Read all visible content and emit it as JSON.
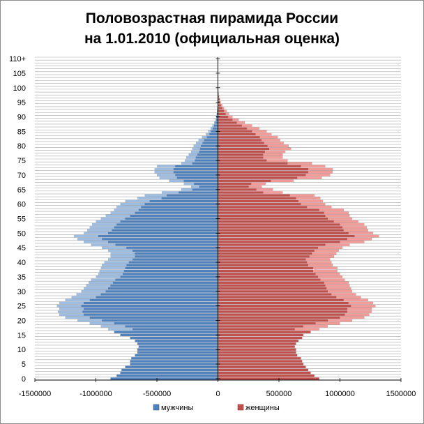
{
  "chart_data": {
    "type": "bar",
    "orientation": "horizontal",
    "title_lines": [
      "Половозрастная пирамида России",
      "на 1.01.2010 (официальная оценка)"
    ],
    "xlim": [
      -1500000,
      1500000
    ],
    "x_ticks": [
      -1500000,
      -1000000,
      -500000,
      0,
      500000,
      1000000,
      1500000
    ],
    "x_tick_labels": [
      "-1500000",
      "-1000000",
      "-500000",
      "0",
      "500000",
      "1000000",
      "1500000"
    ],
    "y_tick_labels": [
      "0",
      "5",
      "10",
      "15",
      "20",
      "25",
      "30",
      "35",
      "40",
      "45",
      "50",
      "55",
      "60",
      "65",
      "70",
      "75",
      "80",
      "85",
      "90",
      "95",
      "100",
      "105",
      "110+"
    ],
    "ages": [
      0,
      1,
      2,
      3,
      4,
      5,
      6,
      7,
      8,
      9,
      10,
      11,
      12,
      13,
      14,
      15,
      16,
      17,
      18,
      19,
      20,
      21,
      22,
      23,
      24,
      25,
      26,
      27,
      28,
      29,
      30,
      31,
      32,
      33,
      34,
      35,
      36,
      37,
      38,
      39,
      40,
      41,
      42,
      43,
      44,
      45,
      46,
      47,
      48,
      49,
      50,
      51,
      52,
      53,
      54,
      55,
      56,
      57,
      58,
      59,
      60,
      61,
      62,
      63,
      64,
      65,
      66,
      67,
      68,
      69,
      70,
      71,
      72,
      73,
      74,
      75,
      76,
      77,
      78,
      79,
      80,
      81,
      82,
      83,
      84,
      85,
      86,
      87,
      88,
      89,
      90,
      91,
      92,
      93,
      94,
      95,
      96,
      97,
      98,
      99,
      100,
      101,
      102,
      103,
      104,
      105,
      106,
      107,
      108,
      109,
      110
    ],
    "legend_position": "bottom",
    "grid": true,
    "series": [
      {
        "name": "мужчины",
        "color": "#4f81bd",
        "light_color": "#9fbde0",
        "values": [
          -880000,
          -830000,
          -800000,
          -790000,
          -760000,
          -720000,
          -720000,
          -710000,
          -680000,
          -660000,
          -660000,
          -650000,
          -660000,
          -680000,
          -720000,
          -800000,
          -850000,
          -900000,
          -960000,
          -1050000,
          -1150000,
          -1250000,
          -1300000,
          -1310000,
          -1300000,
          -1320000,
          -1300000,
          -1250000,
          -1200000,
          -1160000,
          -1120000,
          -1100000,
          -1080000,
          -1060000,
          -1040000,
          -1000000,
          -980000,
          -970000,
          -960000,
          -950000,
          -930000,
          -900000,
          -880000,
          -880000,
          -900000,
          -950000,
          -1040000,
          -1100000,
          -1150000,
          -1180000,
          -1100000,
          -1070000,
          -1050000,
          -1030000,
          -1000000,
          -960000,
          -920000,
          -880000,
          -850000,
          -830000,
          -800000,
          -760000,
          -660000,
          -600000,
          -460000,
          -300000,
          -220000,
          -280000,
          -400000,
          -480000,
          -500000,
          -520000,
          -520000,
          -500000,
          -300000,
          -270000,
          -260000,
          -240000,
          -220000,
          -210000,
          -200000,
          -180000,
          -160000,
          -130000,
          -100000,
          -80000,
          -60000,
          -45000,
          -30000,
          -20000,
          -14000,
          -10000,
          -7000,
          -5000,
          -3000,
          -2000,
          -1500,
          -1000,
          -600,
          -400,
          -200,
          -100,
          -50,
          -30,
          -20,
          -10,
          -5,
          -3,
          -2,
          -1,
          -1
        ]
      },
      {
        "name": "женщины",
        "color": "#c0504d",
        "light_color": "#f29b98",
        "values": [
          830000,
          790000,
          760000,
          740000,
          720000,
          700000,
          690000,
          680000,
          650000,
          640000,
          640000,
          630000,
          640000,
          660000,
          690000,
          700000,
          760000,
          830000,
          900000,
          1000000,
          1100000,
          1200000,
          1240000,
          1260000,
          1260000,
          1290000,
          1270000,
          1230000,
          1170000,
          1130000,
          1100000,
          1090000,
          1080000,
          1070000,
          1040000,
          1020000,
          1000000,
          980000,
          980000,
          940000,
          930000,
          920000,
          950000,
          970000,
          990000,
          1020000,
          1080000,
          1200000,
          1260000,
          1320000,
          1270000,
          1230000,
          1220000,
          1200000,
          1150000,
          1100000,
          1080000,
          1070000,
          1030000,
          930000,
          880000,
          860000,
          840000,
          790000,
          530000,
          450000,
          360000,
          390000,
          620000,
          850000,
          920000,
          940000,
          940000,
          880000,
          770000,
          570000,
          530000,
          530000,
          550000,
          600000,
          580000,
          540000,
          510000,
          490000,
          440000,
          400000,
          340000,
          280000,
          220000,
          170000,
          120000,
          90000,
          70000,
          50000,
          35000,
          22000,
          15000,
          10000,
          6000,
          4000,
          2500,
          1500,
          1000,
          600,
          400,
          200,
          100,
          60,
          30,
          20,
          10
        ]
      }
    ]
  }
}
